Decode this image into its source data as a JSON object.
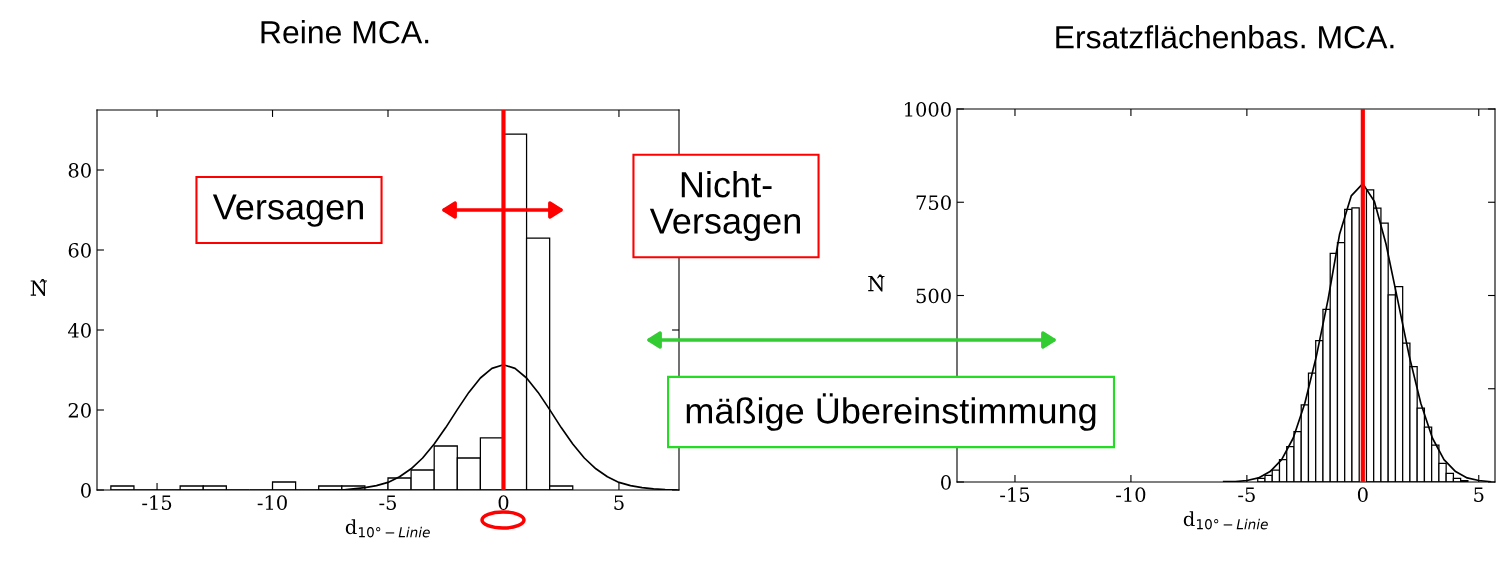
{
  "chart_data": [
    {
      "type": "histogram",
      "title": "Reine MCA.",
      "xlabel": "d$_{10°−Linie}$",
      "ylabel": "N̂",
      "bins": [
        -17,
        -16,
        -15,
        -14,
        -13,
        -12,
        -11,
        -10,
        -9,
        -8,
        -7,
        -6,
        -5,
        -4,
        -3,
        -2,
        -1,
        0,
        1,
        2,
        3
      ],
      "values": [
        1,
        0,
        0,
        1,
        1,
        0,
        0,
        2,
        0,
        1,
        1,
        0,
        3,
        5,
        11,
        8,
        13,
        89,
        63,
        1
      ],
      "color": "#ffffff",
      "series": [
        {
          "type": "line",
          "color": "#000000",
          "x": [
            -8,
            -7.5,
            -7,
            -6.5,
            -6,
            -5.5,
            -5,
            -4.5,
            -4,
            -3.5,
            -3,
            -2.5,
            -2,
            -1.5,
            -1,
            -0.5,
            0,
            0.5,
            1,
            1.5,
            2,
            2.5,
            3,
            3.5,
            4,
            4.5,
            5,
            5.5,
            6,
            6.5,
            7,
            7.5
          ],
          "values": [
            0,
            0,
            0,
            0.3,
            0.6,
            1.1,
            1.9,
            3.3,
            5.3,
            8.0,
            11.5,
            15.6,
            20.1,
            24.4,
            28.0,
            30.4,
            31.3,
            30.4,
            28.0,
            24.4,
            20.1,
            15.6,
            11.5,
            8.0,
            5.3,
            3.3,
            1.9,
            1.1,
            0.6,
            0.3,
            0.1,
            0
          ]
        }
      ],
      "xlim": [
        -17.6,
        7.6
      ],
      "ylim": [
        0,
        95
      ],
      "xticks": [
        -15,
        -10,
        -5,
        0,
        5
      ],
      "yticks": [
        0,
        20,
        40,
        60,
        80
      ],
      "ref_lines": [
        {
          "axis": "x",
          "value": 0,
          "color": "#ff0000"
        }
      ],
      "annotations": [
        "Versagen",
        "Nicht-\nVersagen",
        "mäßige Übereinstimmung"
      ],
      "grid": false,
      "legend": false
    },
    {
      "type": "histogram",
      "title": "Ersatzflächenbas. MCA.",
      "xlabel": "d$_{10°−Linie}$",
      "ylabel": "N̂",
      "bins": [
        -4.84375,
        -4.53125,
        -4.21875,
        -3.90625,
        -3.59375,
        -3.28125,
        -2.96875,
        -2.65625,
        -2.34375,
        -2.03125,
        -1.71875,
        -1.40625,
        -1.09375,
        -0.78125,
        -0.46875,
        -0.15625,
        0.15625,
        0.46875,
        0.78125,
        1.09375,
        1.40625,
        1.71875,
        2.03125,
        2.34375,
        2.65625,
        2.96875,
        3.28125,
        3.59375,
        3.90625,
        4.21875,
        4.53125,
        4.84375
      ],
      "values": [
        null,
        10,
        18,
        32,
        60,
        95,
        135,
        207,
        292,
        379,
        463,
        613,
        642,
        731,
        735,
        null,
        783,
        734,
        694,
        502,
        524,
        372,
        309,
        198,
        147,
        99,
        50,
        23,
        10,
        4,
        null
      ],
      "color": "#ffffff",
      "series": [
        {
          "type": "line",
          "color": "#000000",
          "x": [
            -6,
            -5.5,
            -5,
            -4.5,
            -4,
            -3.5,
            -3,
            -2.5,
            -2,
            -1.5,
            -1,
            -0.5,
            0,
            0.5,
            1,
            1.5,
            2,
            2.5,
            3,
            3.5,
            4,
            4.5,
            5,
            5.5
          ],
          "values": [
            1,
            1,
            4,
            11,
            28,
            60,
            118,
            211,
            338,
            489,
            665,
            767,
            800,
            752,
            638,
            489,
            338,
            211,
            118,
            60,
            28,
            11,
            4,
            1
          ]
        }
      ],
      "xlim": [
        -17.5,
        5.7
      ],
      "ylim": [
        0,
        1000
      ],
      "xticks": [
        -15,
        -10,
        -5,
        0,
        5
      ],
      "yticks": [
        0,
        {
          "value": 250,
          "label": null
        },
        500,
        750,
        1000
      ],
      "ref_lines": [
        {
          "axis": "x",
          "value": 0,
          "color": "#ff0000"
        }
      ],
      "grid": false,
      "legend": false
    }
  ]
}
